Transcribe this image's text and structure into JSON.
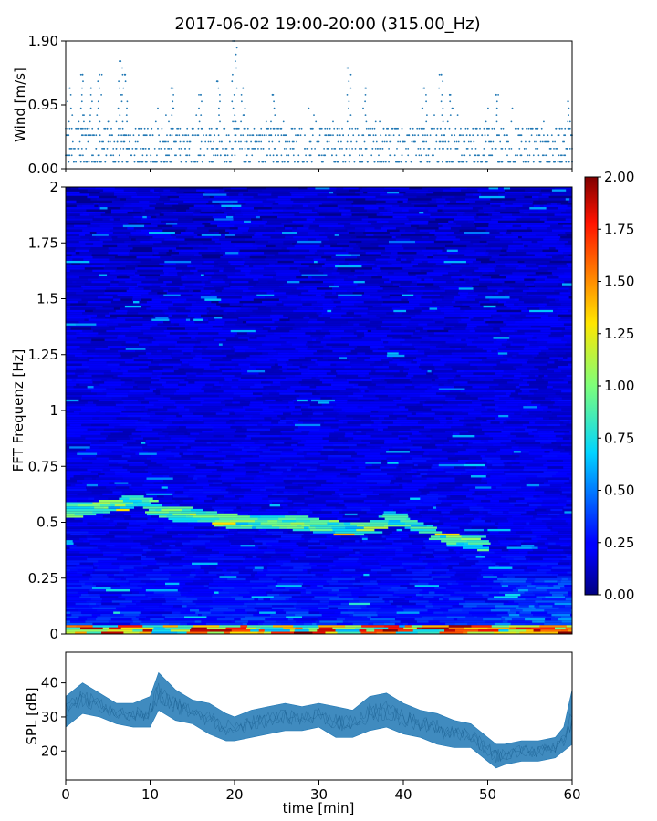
{
  "title": "2017-06-02 19:00-20:00 (315.00_Hz)",
  "colors": {
    "scatter": "#1f77b4",
    "spl_band": "#1f77b4",
    "frame": "#000000"
  },
  "chart_data": [
    {
      "name": "wind",
      "type": "scatter",
      "ylabel": "Wind [m/s]",
      "xlim": [
        0,
        60
      ],
      "ylim": [
        0,
        1.9
      ],
      "yticks": [
        "0.00",
        "0.95",
        "1.90"
      ],
      "ytick_values": [
        0,
        0.95,
        1.9
      ],
      "typical_range": [
        0.0,
        0.6
      ],
      "gust_peaks": [
        {
          "x": 0.5,
          "y": 1.2
        },
        {
          "x": 2.0,
          "y": 1.4
        },
        {
          "x": 3.0,
          "y": 1.2
        },
        {
          "x": 4.0,
          "y": 1.4
        },
        {
          "x": 6.5,
          "y": 1.6
        },
        {
          "x": 7.0,
          "y": 1.4
        },
        {
          "x": 12.5,
          "y": 1.2
        },
        {
          "x": 16.0,
          "y": 1.1
        },
        {
          "x": 18.0,
          "y": 1.3
        },
        {
          "x": 20.0,
          "y": 1.9
        },
        {
          "x": 21.0,
          "y": 1.2
        },
        {
          "x": 24.5,
          "y": 1.1
        },
        {
          "x": 33.5,
          "y": 1.5
        },
        {
          "x": 35.5,
          "y": 1.2
        },
        {
          "x": 42.5,
          "y": 1.2
        },
        {
          "x": 44.5,
          "y": 1.4
        },
        {
          "x": 45.5,
          "y": 1.1
        },
        {
          "x": 51.0,
          "y": 1.1
        },
        {
          "x": 59.5,
          "y": 1.0
        }
      ]
    },
    {
      "name": "spectrogram",
      "type": "heatmap",
      "ylabel": "FFT Frequenz [Hz]",
      "xlim": [
        0,
        60
      ],
      "ylim": [
        0,
        2
      ],
      "yticks": [
        "0",
        "0.25",
        "0.5",
        "0.75",
        "1",
        "1.25",
        "1.5",
        "1.75",
        "2"
      ],
      "ytick_values": [
        0,
        0.25,
        0.5,
        0.75,
        1,
        1.25,
        1.5,
        1.75,
        2
      ],
      "colormap": "jet",
      "clim": [
        0,
        2
      ],
      "colorbar_ticks": [
        "0.00",
        "0.25",
        "0.50",
        "0.75",
        "1.00",
        "1.25",
        "1.50",
        "1.75",
        "2.00"
      ],
      "colorbar_tick_values": [
        0,
        0.25,
        0.5,
        0.75,
        1,
        1.25,
        1.5,
        1.75,
        2
      ],
      "ridge": [
        {
          "x": 0,
          "f": 0.55
        },
        {
          "x": 5,
          "f": 0.57
        },
        {
          "x": 9,
          "f": 0.6
        },
        {
          "x": 12,
          "f": 0.54
        },
        {
          "x": 16,
          "f": 0.53
        },
        {
          "x": 20,
          "f": 0.5
        },
        {
          "x": 25,
          "f": 0.5
        },
        {
          "x": 30,
          "f": 0.49
        },
        {
          "x": 33,
          "f": 0.47
        },
        {
          "x": 36,
          "f": 0.47
        },
        {
          "x": 38,
          "f": 0.52
        },
        {
          "x": 41,
          "f": 0.5
        },
        {
          "x": 45,
          "f": 0.42
        },
        {
          "x": 50,
          "f": 0.4
        }
      ]
    },
    {
      "name": "spl",
      "type": "area",
      "xlabel": "time [min]",
      "ylabel": "SPL [dB]",
      "xlim": [
        0,
        60
      ],
      "ylim": [
        11.5,
        49
      ],
      "xticks": [
        "0",
        "10",
        "20",
        "30",
        "40",
        "50",
        "60"
      ],
      "xtick_values": [
        0,
        10,
        20,
        30,
        40,
        50,
        60
      ],
      "yticks": [
        "20",
        "30",
        "40"
      ],
      "ytick_values": [
        20,
        30,
        40
      ],
      "x": [
        0,
        2,
        4,
        6,
        8,
        10,
        11,
        13,
        15,
        17,
        19,
        20,
        22,
        24,
        26,
        28,
        30,
        32,
        34,
        36,
        38,
        40,
        42,
        44,
        46,
        48,
        50,
        51,
        52,
        54,
        56,
        58,
        59,
        60
      ],
      "low": [
        27,
        31,
        30,
        28,
        27,
        27,
        32,
        29,
        28,
        25,
        23,
        23,
        24,
        25,
        26,
        26,
        27,
        24,
        24,
        26,
        27,
        25,
        24,
        22,
        21,
        21,
        17,
        15,
        16,
        17,
        17,
        18,
        20,
        22
      ],
      "high": [
        36,
        40,
        37,
        34,
        34,
        36,
        43,
        38,
        35,
        34,
        31,
        30,
        32,
        33,
        34,
        33,
        34,
        33,
        32,
        36,
        37,
        34,
        32,
        31,
        29,
        28,
        24,
        22,
        22,
        23,
        23,
        24,
        27,
        38
      ]
    }
  ]
}
